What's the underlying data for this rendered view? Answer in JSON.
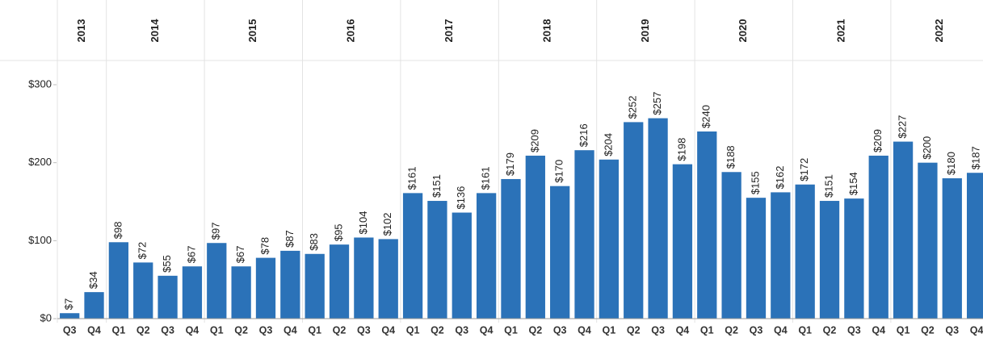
{
  "chart_data": {
    "type": "bar",
    "color": "#2b72b8",
    "groups": [
      {
        "name": "2013",
        "categories": [
          "Q3",
          "Q4"
        ]
      },
      {
        "name": "2014",
        "categories": [
          "Q1",
          "Q2",
          "Q3",
          "Q4"
        ]
      },
      {
        "name": "2015",
        "categories": [
          "Q1",
          "Q2",
          "Q3",
          "Q4"
        ]
      },
      {
        "name": "2016",
        "categories": [
          "Q1",
          "Q2",
          "Q3",
          "Q4"
        ]
      },
      {
        "name": "2017",
        "categories": [
          "Q1",
          "Q2",
          "Q3",
          "Q4"
        ]
      },
      {
        "name": "2018",
        "categories": [
          "Q1",
          "Q2",
          "Q3",
          "Q4"
        ]
      },
      {
        "name": "2019",
        "categories": [
          "Q1",
          "Q2",
          "Q3",
          "Q4"
        ]
      },
      {
        "name": "2020",
        "categories": [
          "Q1",
          "Q2",
          "Q3",
          "Q4"
        ]
      },
      {
        "name": "2021",
        "categories": [
          "Q1",
          "Q2",
          "Q3",
          "Q4"
        ]
      },
      {
        "name": "2022",
        "categories": [
          "Q1",
          "Q2",
          "Q3",
          "Q4"
        ]
      }
    ],
    "values": [
      7,
      34,
      98,
      72,
      55,
      67,
      97,
      67,
      78,
      87,
      83,
      95,
      104,
      102,
      161,
      151,
      136,
      161,
      179,
      209,
      170,
      216,
      204,
      252,
      257,
      198,
      240,
      188,
      155,
      162,
      172,
      151,
      154,
      209,
      227,
      200,
      180,
      187
    ],
    "value_labels": [
      "$7",
      "$34",
      "$98",
      "$72",
      "$55",
      "$67",
      "$97",
      "$67",
      "$78",
      "$87",
      "$83",
      "$95",
      "$104",
      "$102",
      "$161",
      "$151",
      "$136",
      "$161",
      "$179",
      "$209",
      "$170",
      "$216",
      "$204",
      "$252",
      "$257",
      "$198",
      "$240",
      "$188",
      "$155",
      "$162",
      "$172",
      "$151",
      "$154",
      "$209",
      "$227",
      "$200",
      "$180",
      "$187"
    ],
    "ylim": [
      0,
      330
    ],
    "yticks": [
      {
        "value": 0,
        "label": "$0"
      },
      {
        "value": 100,
        "label": "$100"
      },
      {
        "value": 200,
        "label": "$200"
      },
      {
        "value": 300,
        "label": "$300"
      }
    ]
  }
}
